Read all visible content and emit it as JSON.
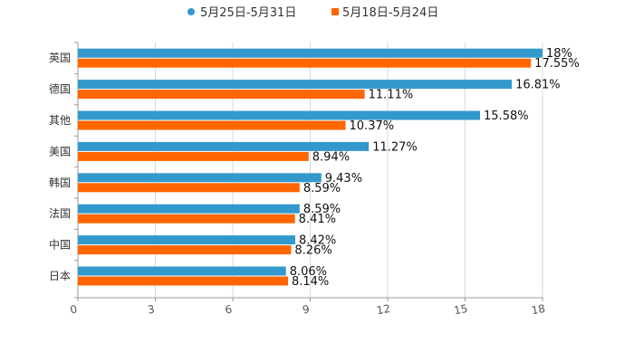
{
  "chart_data": {
    "type": "bar",
    "orientation": "horizontal",
    "title": "",
    "xlabel": "",
    "ylabel": "",
    "xlim": [
      0,
      18
    ],
    "x_ticks": [
      0,
      3,
      6,
      9,
      12,
      15,
      18
    ],
    "grid": true,
    "legend_position": "top",
    "categories": [
      "英国",
      "德国",
      "其他",
      "美国",
      "韩国",
      "法国",
      "中国",
      "日本"
    ],
    "series": [
      {
        "name": "5月25日-5月31日",
        "color": "#3399cc",
        "values": [
          18,
          16.81,
          15.58,
          11.27,
          9.43,
          8.59,
          8.42,
          8.06
        ],
        "labels": [
          "18%",
          "16.81%",
          "15.58%",
          "11.27%",
          "9.43%",
          "8.59%",
          "8.42%",
          "8.06%"
        ]
      },
      {
        "name": "5月18日-5月24日",
        "color": "#ff6600",
        "values": [
          17.55,
          11.11,
          10.37,
          8.94,
          8.59,
          8.41,
          8.26,
          8.14
        ],
        "labels": [
          "17.55%",
          "11.11%",
          "10.37%",
          "8.94%",
          "8.59%",
          "8.41%",
          "8.26%",
          "8.14%"
        ]
      }
    ]
  }
}
